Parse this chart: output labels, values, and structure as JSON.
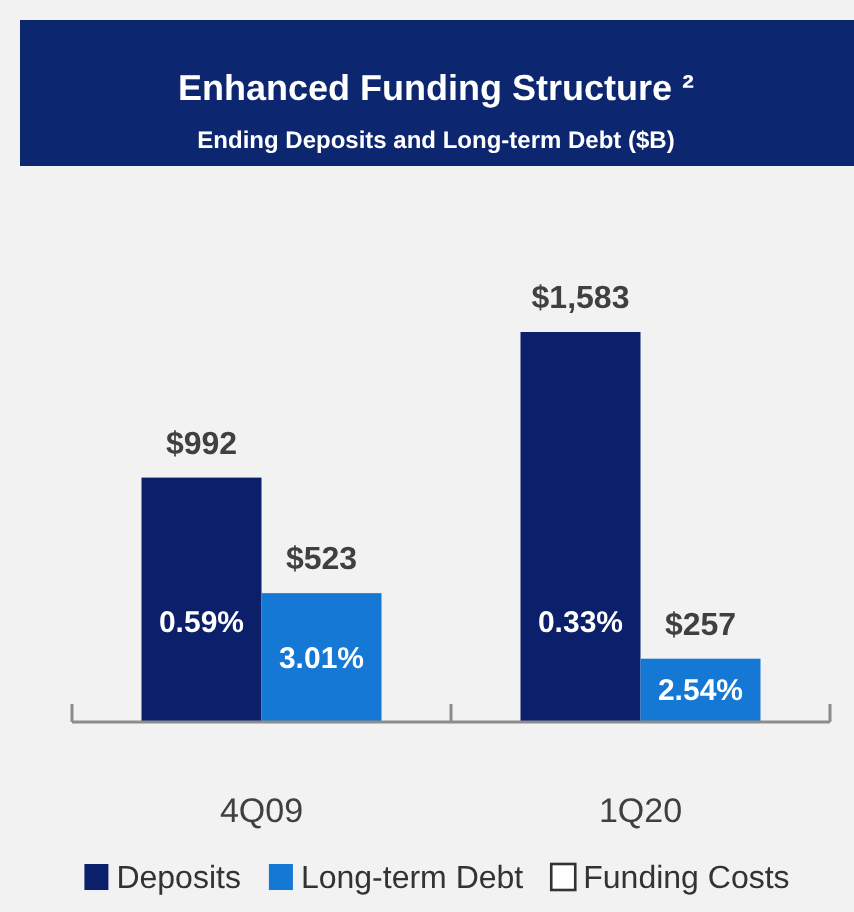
{
  "chart_data": {
    "type": "bar",
    "title": "Enhanced Funding Structure ²",
    "subtitle": "Ending Deposits and Long-term Debt ($B)",
    "categories": [
      "4Q09",
      "1Q20"
    ],
    "series": [
      {
        "name": "Deposits",
        "color": "#0b1f6b",
        "values": [
          992,
          1583
        ],
        "value_labels": [
          "$992",
          "$1,583"
        ]
      },
      {
        "name": "Long-term Debt",
        "color": "#1478d4",
        "values": [
          523,
          257
        ],
        "value_labels": [
          "$523",
          "$257"
        ]
      },
      {
        "name": "Funding Costs",
        "type": "other",
        "color": "#ffffff",
        "values": [
          null,
          null
        ]
      }
    ],
    "annotations": [
      "0.59%",
      "3.01%",
      "0.33%",
      "2.54%"
    ],
    "legend": "bottom"
  }
}
